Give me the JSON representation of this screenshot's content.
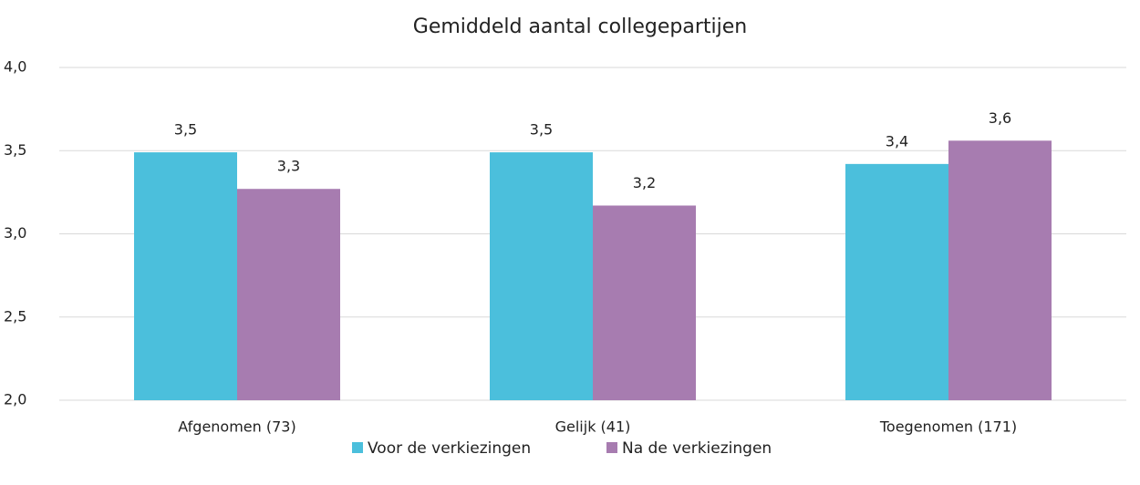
{
  "chart_data": {
    "type": "bar",
    "title": "Gemiddeld aantal collegepartijen",
    "categories": [
      "Afgenomen (73)",
      "Gelijk (41)",
      "Toegenomen (171)"
    ],
    "series": [
      {
        "name": "Voor de verkiezingen",
        "color": "#4bbfdc",
        "values": [
          3.49,
          3.49,
          3.42
        ],
        "value_labels": [
          "3,5",
          "3,5",
          "3,4"
        ]
      },
      {
        "name": "Na de verkiezingen",
        "color": "#a77cb0",
        "values": [
          3.27,
          3.17,
          3.56
        ],
        "value_labels": [
          "3,3",
          "3,2",
          "3,6"
        ]
      }
    ],
    "ylim": [
      2.0,
      4.0
    ],
    "yticks": [
      {
        "value": 2.0,
        "label": "2,0"
      },
      {
        "value": 2.5,
        "label": "2,5"
      },
      {
        "value": 3.0,
        "label": "3,0"
      },
      {
        "value": 3.5,
        "label": "3,5"
      },
      {
        "value": 4.0,
        "label": "4,0"
      }
    ],
    "grid": true,
    "legend": "bottom"
  }
}
